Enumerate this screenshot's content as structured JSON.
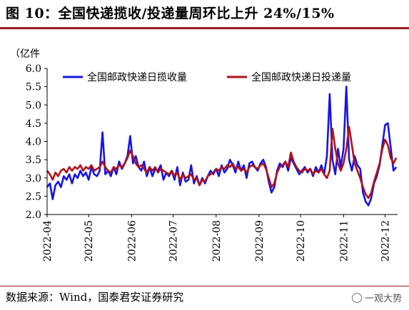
{
  "figure": {
    "title": "图 10：全国快递揽收/投递量周环比上升 24%/15%",
    "source": "数据来源：Wind，国泰君安证券研究",
    "watermark": "一观大势"
  },
  "colors": {
    "title_rule": "#9f1d20",
    "collect": "#1414e6",
    "deliver": "#b0101a"
  },
  "chart_data": {
    "type": "line",
    "ylabel": "（亿件",
    "ylim": [
      2.0,
      6.0
    ],
    "yticks": [
      "2.0",
      "2.5",
      "3.0",
      "3.5",
      "4.0",
      "4.5",
      "5.0",
      "5.5",
      "6.0"
    ],
    "xlim": [
      "2022-04-01",
      "2022-12-10"
    ],
    "xticks": [
      "2022-04",
      "2022-05",
      "2022-06",
      "2022-07",
      "2022-08",
      "2022-09",
      "2022-10",
      "2022-11",
      "2022-12"
    ],
    "legend_position": "top",
    "series": [
      {
        "name": "全国邮政快递日揽收量",
        "color": "#1414e6",
        "points": [
          [
            "2022-04-01",
            2.75
          ],
          [
            "2022-04-03",
            2.85
          ],
          [
            "2022-04-05",
            2.42
          ],
          [
            "2022-04-07",
            2.8
          ],
          [
            "2022-04-09",
            2.9
          ],
          [
            "2022-04-11",
            2.75
          ],
          [
            "2022-04-13",
            3.05
          ],
          [
            "2022-04-15",
            2.95
          ],
          [
            "2022-04-17",
            3.1
          ],
          [
            "2022-04-19",
            2.85
          ],
          [
            "2022-04-21",
            3.1
          ],
          [
            "2022-04-23",
            3.0
          ],
          [
            "2022-04-25",
            3.2
          ],
          [
            "2022-04-27",
            3.05
          ],
          [
            "2022-04-29",
            3.15
          ],
          [
            "2022-05-01",
            2.95
          ],
          [
            "2022-05-03",
            3.3
          ],
          [
            "2022-05-05",
            3.1
          ],
          [
            "2022-05-07",
            3.05
          ],
          [
            "2022-05-09",
            3.2
          ],
          [
            "2022-05-11",
            4.25
          ],
          [
            "2022-05-13",
            3.1
          ],
          [
            "2022-05-15",
            3.2
          ],
          [
            "2022-05-17",
            3.05
          ],
          [
            "2022-05-19",
            3.3
          ],
          [
            "2022-05-21",
            3.1
          ],
          [
            "2022-05-23",
            3.45
          ],
          [
            "2022-05-25",
            3.25
          ],
          [
            "2022-05-27",
            3.4
          ],
          [
            "2022-05-29",
            3.6
          ],
          [
            "2022-05-31",
            4.15
          ],
          [
            "2022-06-02",
            3.4
          ],
          [
            "2022-06-04",
            3.6
          ],
          [
            "2022-06-06",
            3.3
          ],
          [
            "2022-06-08",
            3.2
          ],
          [
            "2022-06-10",
            3.45
          ],
          [
            "2022-06-12",
            3.05
          ],
          [
            "2022-06-14",
            3.3
          ],
          [
            "2022-06-16",
            3.05
          ],
          [
            "2022-06-18",
            3.25
          ],
          [
            "2022-06-20",
            3.2
          ],
          [
            "2022-06-22",
            3.35
          ],
          [
            "2022-06-24",
            2.95
          ],
          [
            "2022-06-26",
            3.15
          ],
          [
            "2022-06-28",
            3.05
          ],
          [
            "2022-06-30",
            3.2
          ],
          [
            "2022-07-02",
            2.95
          ],
          [
            "2022-07-04",
            3.3
          ],
          [
            "2022-07-06",
            2.8
          ],
          [
            "2022-07-08",
            3.15
          ],
          [
            "2022-07-10",
            2.9
          ],
          [
            "2022-07-12",
            2.95
          ],
          [
            "2022-07-14",
            3.35
          ],
          [
            "2022-07-16",
            2.85
          ],
          [
            "2022-07-18",
            3.05
          ],
          [
            "2022-07-20",
            2.8
          ],
          [
            "2022-07-22",
            3.0
          ],
          [
            "2022-07-24",
            2.85
          ],
          [
            "2022-07-26",
            3.05
          ],
          [
            "2022-07-28",
            3.2
          ],
          [
            "2022-07-30",
            3.1
          ],
          [
            "2022-08-01",
            3.25
          ],
          [
            "2022-08-03",
            3.05
          ],
          [
            "2022-08-05",
            3.35
          ],
          [
            "2022-08-07",
            3.15
          ],
          [
            "2022-08-09",
            3.25
          ],
          [
            "2022-08-11",
            3.5
          ],
          [
            "2022-08-13",
            3.35
          ],
          [
            "2022-08-15",
            3.15
          ],
          [
            "2022-08-17",
            3.45
          ],
          [
            "2022-08-19",
            3.2
          ],
          [
            "2022-08-21",
            3.35
          ],
          [
            "2022-08-23",
            3.0
          ],
          [
            "2022-08-25",
            3.4
          ],
          [
            "2022-08-27",
            3.45
          ],
          [
            "2022-08-29",
            3.3
          ],
          [
            "2022-08-31",
            3.2
          ],
          [
            "2022-09-02",
            3.4
          ],
          [
            "2022-09-04",
            3.5
          ],
          [
            "2022-09-06",
            3.3
          ],
          [
            "2022-09-08",
            2.9
          ],
          [
            "2022-09-10",
            2.6
          ],
          [
            "2022-09-12",
            2.75
          ],
          [
            "2022-09-14",
            3.2
          ],
          [
            "2022-09-16",
            3.4
          ],
          [
            "2022-09-18",
            3.3
          ],
          [
            "2022-09-20",
            3.45
          ],
          [
            "2022-09-22",
            3.2
          ],
          [
            "2022-09-24",
            3.55
          ],
          [
            "2022-09-26",
            3.4
          ],
          [
            "2022-09-28",
            3.25
          ],
          [
            "2022-09-30",
            3.1
          ],
          [
            "2022-10-02",
            3.2
          ],
          [
            "2022-10-04",
            3.3
          ],
          [
            "2022-10-06",
            3.15
          ],
          [
            "2022-10-08",
            3.25
          ],
          [
            "2022-10-10",
            3.05
          ],
          [
            "2022-10-12",
            3.3
          ],
          [
            "2022-10-14",
            3.15
          ],
          [
            "2022-10-16",
            3.35
          ],
          [
            "2022-10-18",
            3.1
          ],
          [
            "2022-10-20",
            3.6
          ],
          [
            "2022-10-22",
            5.3
          ],
          [
            "2022-10-24",
            3.5
          ],
          [
            "2022-10-26",
            3.1
          ],
          [
            "2022-10-28",
            3.8
          ],
          [
            "2022-10-30",
            3.3
          ],
          [
            "2022-11-01",
            3.8
          ],
          [
            "2022-11-03",
            5.5
          ],
          [
            "2022-11-05",
            3.5
          ],
          [
            "2022-11-07",
            3.2
          ],
          [
            "2022-11-09",
            3.6
          ],
          [
            "2022-11-11",
            3.35
          ],
          [
            "2022-11-13",
            3.25
          ],
          [
            "2022-11-15",
            2.6
          ],
          [
            "2022-11-17",
            2.35
          ],
          [
            "2022-11-19",
            2.25
          ],
          [
            "2022-11-21",
            2.45
          ],
          [
            "2022-11-23",
            2.85
          ],
          [
            "2022-11-25",
            3.05
          ],
          [
            "2022-11-27",
            3.35
          ],
          [
            "2022-11-29",
            3.9
          ],
          [
            "2022-12-01",
            4.45
          ],
          [
            "2022-12-03",
            4.5
          ],
          [
            "2022-12-05",
            3.85
          ],
          [
            "2022-12-07",
            3.2
          ],
          [
            "2022-12-09",
            3.3
          ]
        ]
      },
      {
        "name": "全国邮政快递日投递量",
        "color": "#b0101a",
        "points": [
          [
            "2022-04-01",
            3.2
          ],
          [
            "2022-04-03",
            3.1
          ],
          [
            "2022-04-05",
            2.95
          ],
          [
            "2022-04-07",
            3.15
          ],
          [
            "2022-04-09",
            3.05
          ],
          [
            "2022-04-11",
            3.2
          ],
          [
            "2022-04-13",
            3.25
          ],
          [
            "2022-04-15",
            3.15
          ],
          [
            "2022-04-17",
            3.3
          ],
          [
            "2022-04-19",
            3.2
          ],
          [
            "2022-04-21",
            3.3
          ],
          [
            "2022-04-23",
            3.25
          ],
          [
            "2022-04-25",
            3.35
          ],
          [
            "2022-04-27",
            3.2
          ],
          [
            "2022-04-29",
            3.3
          ],
          [
            "2022-05-01",
            3.25
          ],
          [
            "2022-05-03",
            3.35
          ],
          [
            "2022-05-05",
            3.2
          ],
          [
            "2022-05-07",
            3.25
          ],
          [
            "2022-05-09",
            3.3
          ],
          [
            "2022-05-11",
            3.45
          ],
          [
            "2022-05-13",
            3.3
          ],
          [
            "2022-05-15",
            3.2
          ],
          [
            "2022-05-17",
            3.15
          ],
          [
            "2022-05-19",
            3.3
          ],
          [
            "2022-05-21",
            3.25
          ],
          [
            "2022-05-23",
            3.35
          ],
          [
            "2022-05-25",
            3.3
          ],
          [
            "2022-05-27",
            3.4
          ],
          [
            "2022-05-29",
            3.55
          ],
          [
            "2022-05-31",
            3.75
          ],
          [
            "2022-06-02",
            3.6
          ],
          [
            "2022-06-04",
            3.4
          ],
          [
            "2022-06-06",
            3.3
          ],
          [
            "2022-06-08",
            3.35
          ],
          [
            "2022-06-10",
            3.25
          ],
          [
            "2022-06-12",
            3.15
          ],
          [
            "2022-06-14",
            3.3
          ],
          [
            "2022-06-16",
            3.2
          ],
          [
            "2022-06-18",
            3.3
          ],
          [
            "2022-06-20",
            3.15
          ],
          [
            "2022-06-22",
            3.25
          ],
          [
            "2022-06-24",
            3.2
          ],
          [
            "2022-06-26",
            3.15
          ],
          [
            "2022-06-28",
            3.1
          ],
          [
            "2022-06-30",
            3.2
          ],
          [
            "2022-07-02",
            3.05
          ],
          [
            "2022-07-04",
            3.15
          ],
          [
            "2022-07-06",
            2.95
          ],
          [
            "2022-07-08",
            3.1
          ],
          [
            "2022-07-10",
            3.0
          ],
          [
            "2022-07-12",
            3.05
          ],
          [
            "2022-07-14",
            3.1
          ],
          [
            "2022-07-16",
            2.95
          ],
          [
            "2022-07-18",
            3.0
          ],
          [
            "2022-07-20",
            2.8
          ],
          [
            "2022-07-22",
            2.95
          ],
          [
            "2022-07-24",
            2.9
          ],
          [
            "2022-07-26",
            3.05
          ],
          [
            "2022-07-28",
            3.1
          ],
          [
            "2022-07-30",
            3.15
          ],
          [
            "2022-08-01",
            3.25
          ],
          [
            "2022-08-03",
            3.2
          ],
          [
            "2022-08-05",
            3.3
          ],
          [
            "2022-08-07",
            3.25
          ],
          [
            "2022-08-09",
            3.35
          ],
          [
            "2022-08-11",
            3.3
          ],
          [
            "2022-08-13",
            3.4
          ],
          [
            "2022-08-15",
            3.25
          ],
          [
            "2022-08-17",
            3.3
          ],
          [
            "2022-08-19",
            3.2
          ],
          [
            "2022-08-21",
            3.25
          ],
          [
            "2022-08-23",
            3.15
          ],
          [
            "2022-08-25",
            3.3
          ],
          [
            "2022-08-27",
            3.35
          ],
          [
            "2022-08-29",
            3.3
          ],
          [
            "2022-08-31",
            3.25
          ],
          [
            "2022-09-02",
            3.35
          ],
          [
            "2022-09-04",
            3.4
          ],
          [
            "2022-09-06",
            3.25
          ],
          [
            "2022-09-08",
            3.0
          ],
          [
            "2022-09-10",
            2.75
          ],
          [
            "2022-09-12",
            2.85
          ],
          [
            "2022-09-14",
            3.15
          ],
          [
            "2022-09-16",
            3.3
          ],
          [
            "2022-09-18",
            3.35
          ],
          [
            "2022-09-20",
            3.45
          ],
          [
            "2022-09-22",
            3.3
          ],
          [
            "2022-09-24",
            3.7
          ],
          [
            "2022-09-26",
            3.45
          ],
          [
            "2022-09-28",
            3.3
          ],
          [
            "2022-09-30",
            3.2
          ],
          [
            "2022-10-02",
            3.15
          ],
          [
            "2022-10-04",
            3.25
          ],
          [
            "2022-10-06",
            3.2
          ],
          [
            "2022-10-08",
            3.25
          ],
          [
            "2022-10-10",
            3.1
          ],
          [
            "2022-10-12",
            3.2
          ],
          [
            "2022-10-14",
            3.15
          ],
          [
            "2022-10-16",
            3.25
          ],
          [
            "2022-10-18",
            3.1
          ],
          [
            "2022-10-20",
            3.0
          ],
          [
            "2022-10-22",
            3.2
          ],
          [
            "2022-10-24",
            4.35
          ],
          [
            "2022-10-26",
            3.8
          ],
          [
            "2022-10-28",
            3.4
          ],
          [
            "2022-10-30",
            3.2
          ],
          [
            "2022-11-01",
            3.4
          ],
          [
            "2022-11-03",
            3.8
          ],
          [
            "2022-11-05",
            4.4
          ],
          [
            "2022-11-07",
            3.9
          ],
          [
            "2022-11-09",
            3.4
          ],
          [
            "2022-11-11",
            3.2
          ],
          [
            "2022-11-13",
            3.0
          ],
          [
            "2022-11-15",
            2.75
          ],
          [
            "2022-11-17",
            2.55
          ],
          [
            "2022-11-19",
            2.45
          ],
          [
            "2022-11-21",
            2.6
          ],
          [
            "2022-11-23",
            2.9
          ],
          [
            "2022-11-25",
            3.15
          ],
          [
            "2022-11-27",
            3.4
          ],
          [
            "2022-11-29",
            3.8
          ],
          [
            "2022-12-01",
            4.05
          ],
          [
            "2022-12-03",
            3.9
          ],
          [
            "2022-12-05",
            3.55
          ],
          [
            "2022-12-07",
            3.4
          ],
          [
            "2022-12-09",
            3.55
          ]
        ]
      }
    ]
  }
}
